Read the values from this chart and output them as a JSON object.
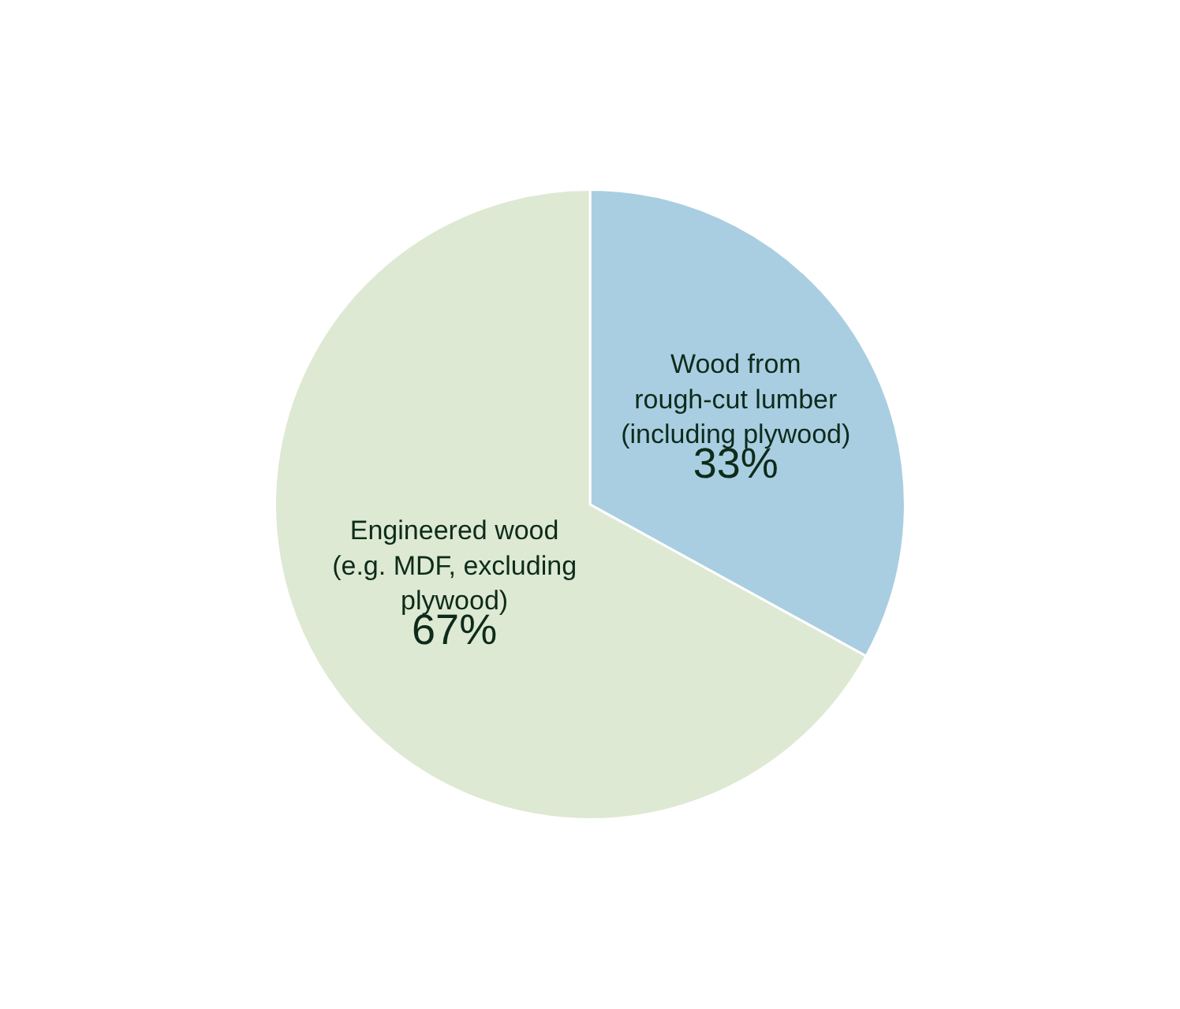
{
  "chart_data": {
    "type": "pie",
    "categories": [
      "Wood from\nrough-cut lumber\n(including plywood)",
      "Engineered wood\n(e.g. MDF, excluding\nplywood)"
    ],
    "values": [
      33,
      67
    ],
    "colors": [
      "#a9cee2",
      "#dde9d2"
    ],
    "value_labels": [
      "33%",
      "67%"
    ],
    "legend": false
  }
}
